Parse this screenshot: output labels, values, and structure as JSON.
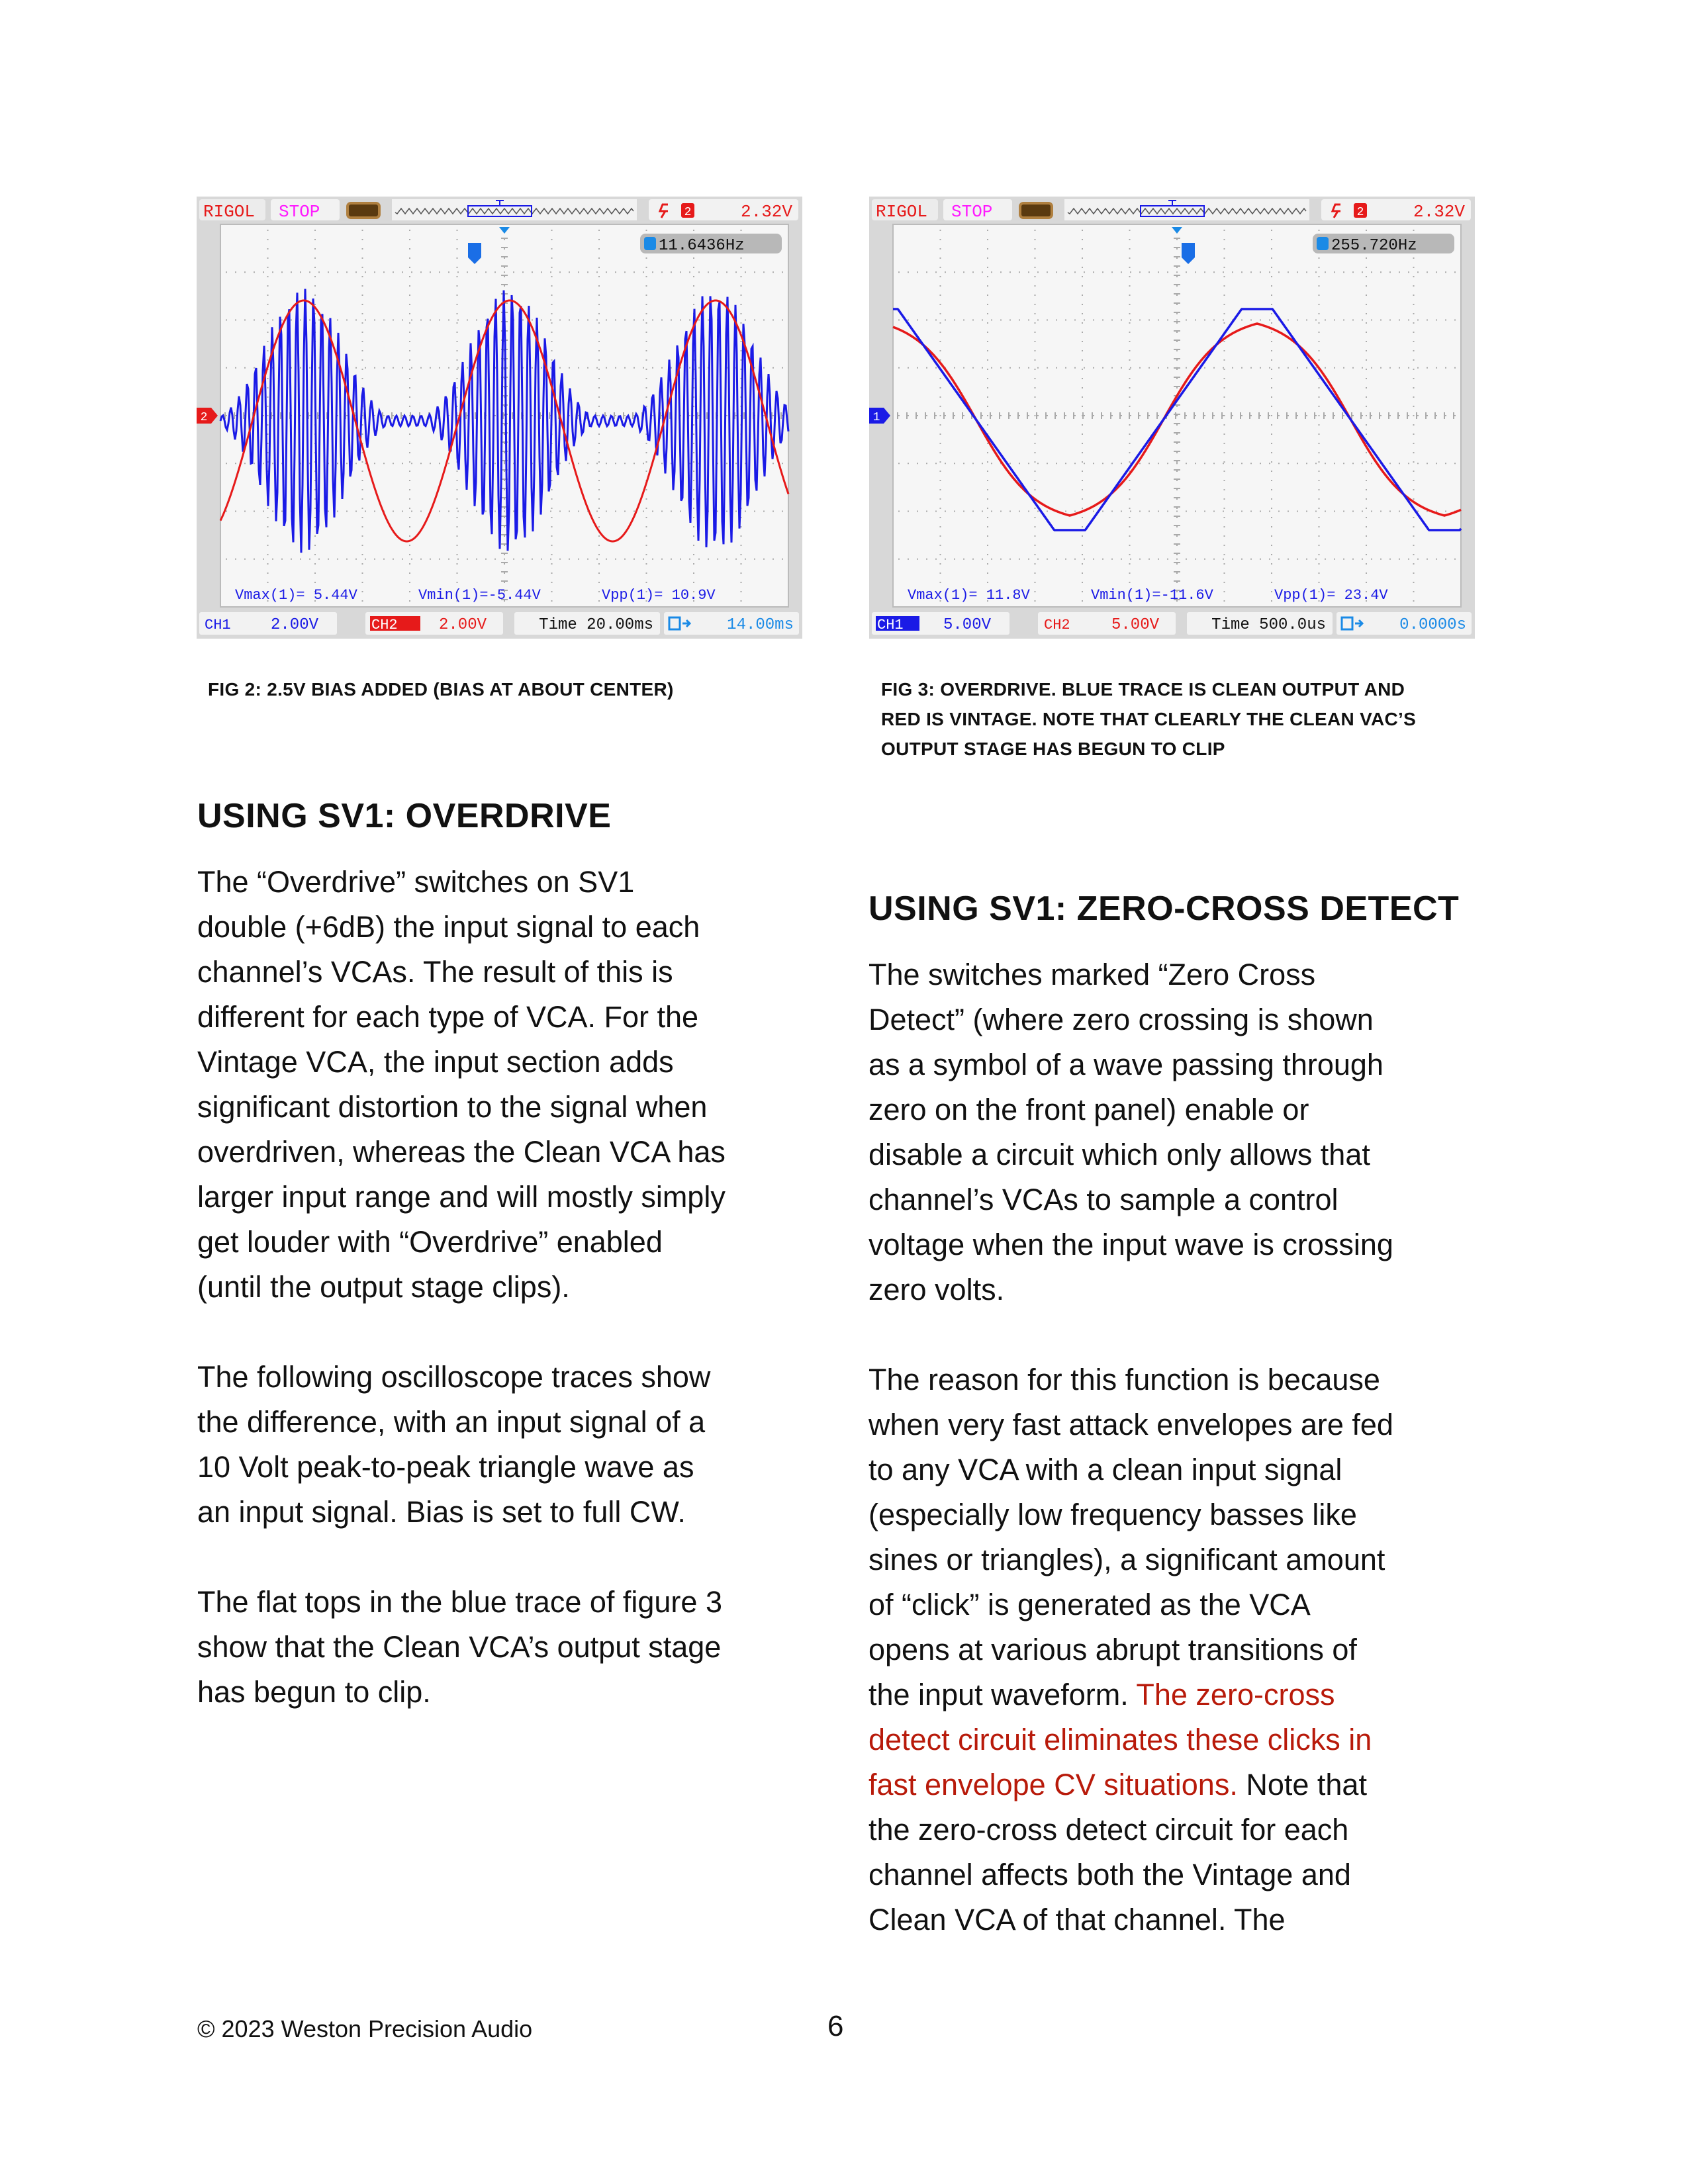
{
  "figures": [
    {
      "id": "fig2",
      "header": {
        "brand": "RIGOL",
        "status": "STOP",
        "trigger_source": "2",
        "trigger_level": "2.32V"
      },
      "frequency": "11.6436Hz",
      "measurements": [
        "Vmax(1)= 5.44V",
        "Vmin(1)=-5.44V",
        "Vpp(1)= 10.9V"
      ],
      "footer": {
        "ch1_label": "CH1",
        "ch1_scale": "2.00V",
        "ch2_label": "CH2",
        "ch2_scale": "2.00V",
        "time": "Time 20.00ms",
        "offset": "14.00ms",
        "active_channel": "CH2"
      },
      "ground_marker": "2",
      "waveforms": {
        "red": "sine",
        "blue": "amplitude-modulated carrier"
      },
      "caption": "FIG 2: 2.5V BIAS ADDED (BIAS AT ABOUT CENTER)"
    },
    {
      "id": "fig3",
      "header": {
        "brand": "RIGOL",
        "status": "STOP",
        "trigger_source": "2",
        "trigger_level": "2.32V"
      },
      "frequency": "255.720Hz",
      "measurements": [
        "Vmax(1)= 11.8V",
        "Vmin(1)=-11.6V",
        "Vpp(1)= 23.4V"
      ],
      "footer": {
        "ch1_label": "CH1",
        "ch1_scale": "5.00V",
        "ch2_label": "CH2",
        "ch2_scale": "5.00V",
        "time": "Time 500.0us",
        "offset": "0.0000s",
        "active_channel": "CH1"
      },
      "ground_marker": "1",
      "waveforms": {
        "red": "softened triangle",
        "blue": "clipped triangle"
      },
      "caption_lines": [
        "FIG 3: OVERDRIVE. BLUE TRACE IS CLEAN OUTPUT AND",
        "RED IS VINTAGE. NOTE THAT CLEARLY THE CLEAN VAC’S",
        "OUTPUT STAGE HAS BEGUN TO CLIP"
      ]
    }
  ],
  "colors": {
    "ch1_blue": "#1a1ae6",
    "ch2_red": "#e61a1a",
    "status_magenta": "#ff1aff",
    "highlight_red": "#b81a0a",
    "screen_bg": "#f6f6f6",
    "frame_gray": "#d8d8d8"
  },
  "left": {
    "heading": "USING SV1: OVERDRIVE",
    "paragraphs": [
      [
        "The “Overdrive” switches on SV1",
        "double (+6dB) the input signal to each",
        "channel’s VCAs. The result of this is",
        "different for each type of VCA. For the",
        "Vintage VCA, the input section adds",
        "significant distortion to the signal when",
        "overdriven, whereas the Clean VCA has",
        "larger input range and will mostly simply",
        "get louder with “Overdrive” enabled",
        "(until the output stage clips)."
      ],
      [
        "The following oscilloscope traces show",
        "the difference, with an input signal of a",
        "10 Volt peak-to-peak triangle wave as",
        "an input signal. Bias is set to full CW."
      ],
      [
        "The flat tops in the blue trace of figure 3",
        "show that the Clean VCA’s output stage",
        "has begun to clip."
      ]
    ]
  },
  "right": {
    "heading": "USING SV1: ZERO-CROSS DETECT",
    "paragraphs": [
      [
        [
          {
            "t": "The switches marked “Zero Cross"
          }
        ],
        [
          {
            "t": "Detect” (where zero crossing is shown"
          }
        ],
        [
          {
            "t": "as a symbol of a wave passing through"
          }
        ],
        [
          {
            "t": "zero on the front panel) enable or"
          }
        ],
        [
          {
            "t": "disable a circuit which only allows that"
          }
        ],
        [
          {
            "t": "channel’s VCAs to sample a control"
          }
        ],
        [
          {
            "t": "voltage when the input wave is crossing"
          }
        ],
        [
          {
            "t": "zero volts."
          }
        ]
      ],
      [
        [
          {
            "t": "The reason for this function is because"
          }
        ],
        [
          {
            "t": "when very fast attack envelopes are fed"
          }
        ],
        [
          {
            "t": "to any VCA with a clean input signal"
          }
        ],
        [
          {
            "t": "(especially low frequency basses like"
          }
        ],
        [
          {
            "t": "sines or triangles), a significant amount"
          }
        ],
        [
          {
            "t": "of “click” is generated as the VCA"
          }
        ],
        [
          {
            "t": "opens at various abrupt transitions of"
          }
        ],
        [
          {
            "t": "the input waveform. "
          },
          {
            "t": "The zero-cross",
            "red": true
          }
        ],
        [
          {
            "t": "detect circuit eliminates these clicks in",
            "red": true
          }
        ],
        [
          {
            "t": "fast envelope CV situations.",
            "red": true
          },
          {
            "t": " Note that"
          }
        ],
        [
          {
            "t": "the zero-cross detect circuit for each"
          }
        ],
        [
          {
            "t": "channel affects both the Vintage and"
          }
        ],
        [
          {
            "t": "Clean VCA of that channel. The"
          }
        ]
      ]
    ]
  },
  "footer": {
    "copyright": "© 2023 Weston Precision Audio",
    "page_number": "6"
  }
}
